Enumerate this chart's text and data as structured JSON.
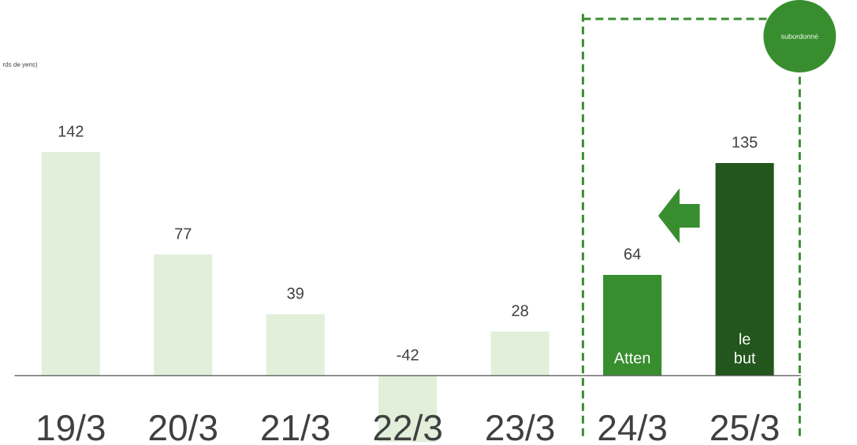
{
  "chart_data": {
    "type": "bar",
    "categories": [
      "19/3",
      "20/3",
      "21/3",
      "22/3",
      "23/3",
      "24/3",
      "25/3"
    ],
    "values": [
      142,
      77,
      39,
      -42,
      28,
      64,
      135
    ],
    "colors": [
      "#e2efda",
      "#e2efda",
      "#e2efda",
      "#e2efda",
      "#e2efda",
      "#388e2f",
      "#22561c"
    ],
    "data_labels": true,
    "tick_labels": "x",
    "annotations": [
      "rds de yens)",
      "subordonné",
      "Atten",
      "le but"
    ]
  }
}
